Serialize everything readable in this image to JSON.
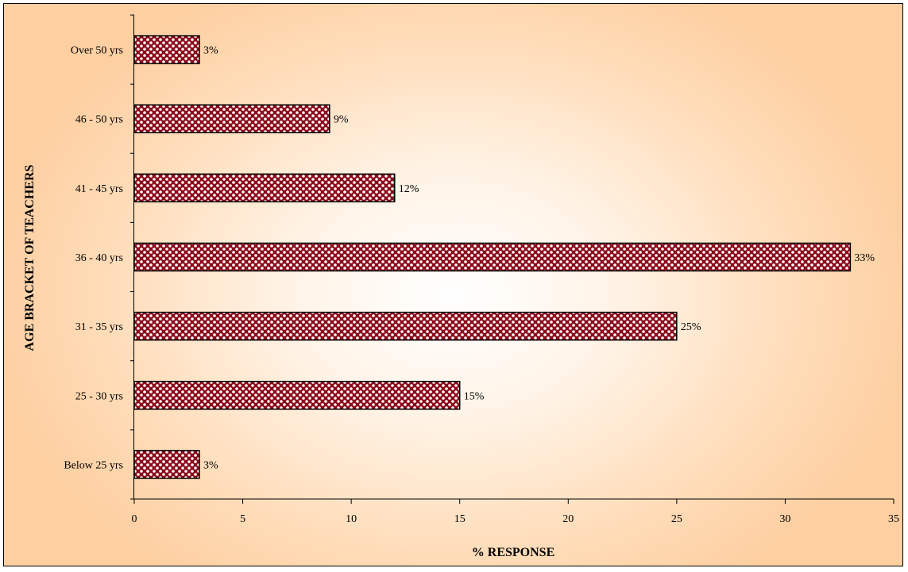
{
  "chart_data": {
    "type": "bar",
    "orientation": "horizontal",
    "title": "",
    "xlabel": "% RESPONSE",
    "ylabel": "AGE BRACKET OF TEACHERS",
    "categories": [
      "Below 25 yrs",
      "25 -  30 yrs",
      "31 - 35 yrs",
      "36 - 40 yrs",
      "41 - 45 yrs",
      "46 - 50 yrs",
      "Over 50 yrs"
    ],
    "values": [
      3,
      15,
      25,
      33,
      12,
      9,
      3
    ],
    "data_labels": [
      "3%",
      "15%",
      "25%",
      "33%",
      "12%",
      "9%",
      "3%"
    ],
    "x_ticks": [
      "0",
      "5",
      "10",
      "15",
      "20",
      "25",
      "30",
      "35"
    ],
    "xlim": [
      0,
      35
    ],
    "grid": false,
    "legend": "none",
    "colors": {
      "bar_dark": "#8b0a1a",
      "bar_light": "#ffffff",
      "background_center": "#ffffff",
      "background_edge": "#fdcfa1"
    }
  }
}
